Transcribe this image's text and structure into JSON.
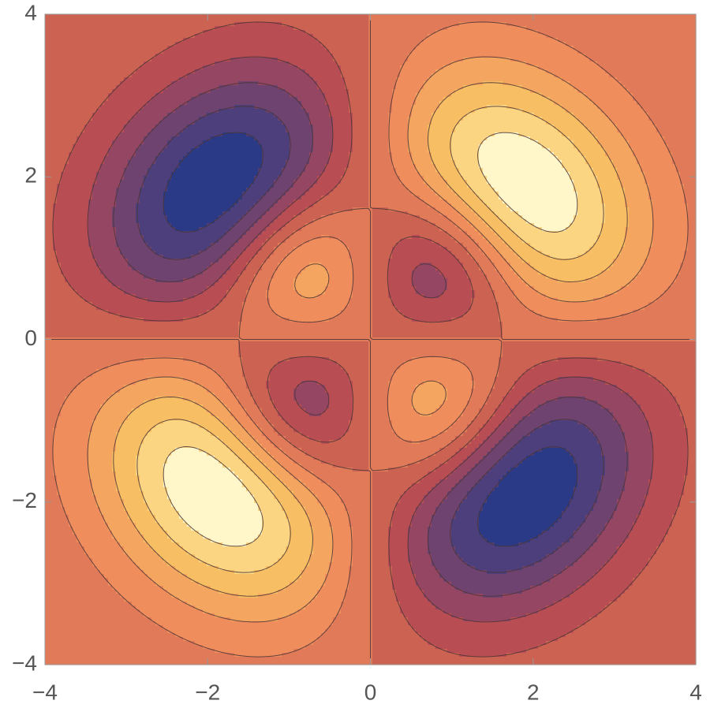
{
  "chart_data": {
    "type": "contour",
    "xlim": [
      -4,
      4
    ],
    "ylim": [
      -4,
      4
    ],
    "xticks": [
      {
        "value": -4,
        "label": "−4"
      },
      {
        "value": -2,
        "label": "−2"
      },
      0,
      2,
      4
    ],
    "yticks": [
      {
        "value": -4,
        "label": "−4"
      },
      {
        "value": -2,
        "label": "−2"
      },
      0,
      2,
      4
    ],
    "colors": [
      "#2b3a86",
      "#4d3f7b",
      "#6e4370",
      "#944663",
      "#b84d54",
      "#cc6352",
      "#e07a58",
      "#ef8d5d",
      "#f4a55f",
      "#f8be63",
      "#fcd582",
      "#fff6ca"
    ]
  }
}
